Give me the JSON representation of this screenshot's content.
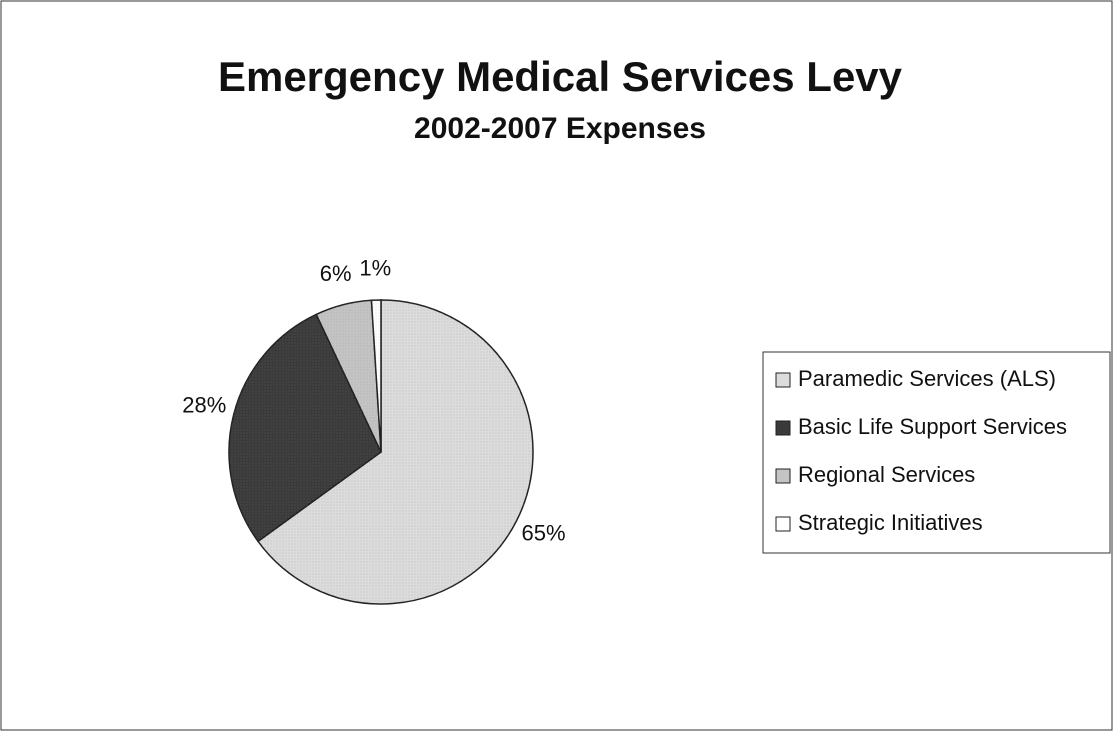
{
  "chart_data": {
    "type": "pie",
    "title": "Emergency Medical Services Levy",
    "subtitle": "2002-2007 Expenses",
    "categories": [
      "Paramedic Services (ALS)",
      "Basic Life Support Services",
      "Regional Services",
      "Strategic Initiatives"
    ],
    "values": [
      65,
      28,
      6,
      1
    ],
    "value_labels": [
      "65%",
      "28%",
      "6%",
      "1%"
    ],
    "colors": [
      "#dcdcdc",
      "#3a3a3a",
      "#c4c4c4",
      "#ffffff"
    ],
    "legend": "right"
  }
}
